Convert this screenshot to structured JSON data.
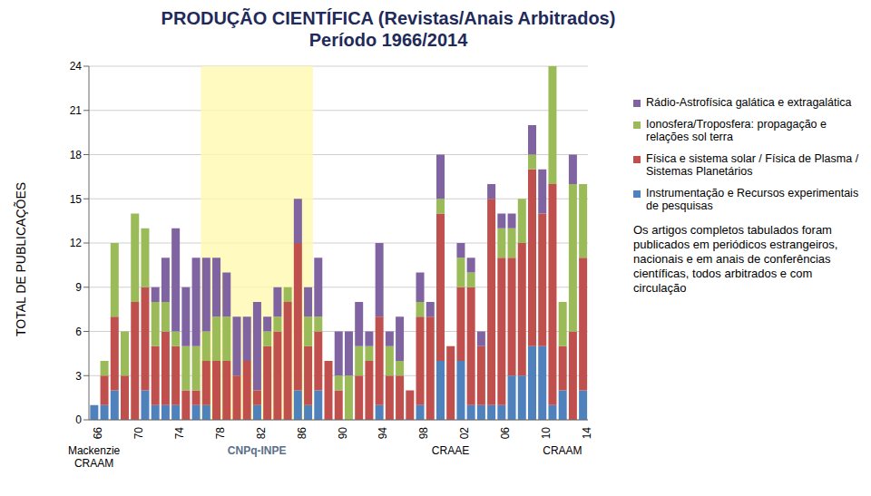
{
  "chart_data": {
    "type": "bar",
    "title": "PRODUÇÃO CIENTÍFICA (Revistas/Anais Arbitrados)",
    "subtitle": "Período 1966/2014",
    "y_label": "TOTAL DE PUBLICAÇÕES",
    "stacked": true,
    "grid": true,
    "legend": "right",
    "note": "Os artigos completos tabulados foram publicados em periódicos estrangeiros, nacionais e em anais de conferências científicas, todos arbitrados e com circulação",
    "categories": [
      "66",
      null,
      null,
      null,
      "70",
      null,
      null,
      null,
      "74",
      null,
      null,
      null,
      "78",
      null,
      null,
      null,
      "82",
      null,
      null,
      null,
      "86",
      null,
      null,
      null,
      "90",
      null,
      null,
      null,
      "94",
      null,
      null,
      null,
      "98",
      null,
      null,
      null,
      "02",
      null,
      null,
      null,
      "06",
      null,
      null,
      null,
      "10",
      null,
      null,
      null,
      "14"
    ],
    "ylim": [
      0,
      24
    ],
    "yticks": [
      0,
      3,
      6,
      9,
      12,
      15,
      18,
      21,
      24
    ],
    "series": [
      {
        "name": "Instrumentação e Recursos experimentais de pesquisas",
        "color": "#4f81bd",
        "values": [
          1,
          1,
          2,
          0,
          0,
          2,
          1,
          1,
          1,
          0,
          1,
          1,
          0,
          0,
          0,
          0,
          1,
          0,
          0,
          0,
          2,
          1,
          2,
          0,
          0,
          0,
          0,
          0,
          1,
          0,
          0,
          0,
          1,
          0,
          4,
          0,
          4,
          1,
          1,
          1,
          1,
          3,
          3,
          5,
          5,
          1,
          2,
          0,
          2
        ]
      },
      {
        "name": "Física e sistema solar / Física de Plasma / Sistemas Planetários",
        "color": "#c0504d",
        "values": [
          0,
          2,
          5,
          3,
          8,
          7,
          4,
          5,
          4,
          2,
          1,
          3,
          4,
          4,
          3,
          4,
          1,
          5,
          6,
          8,
          10,
          4,
          4,
          4,
          2,
          0,
          3,
          4,
          6,
          3,
          3,
          2,
          6,
          7,
          10,
          5,
          5,
          8,
          4,
          14,
          10,
          8,
          9,
          12,
          9,
          15,
          3,
          6,
          9
        ]
      },
      {
        "name": "Ionosfera/Troposfera: propagação e relações sol terra",
        "color": "#9bbb59",
        "values": [
          0,
          1,
          5,
          3,
          6,
          4,
          3,
          2,
          1,
          3,
          3,
          2,
          3,
          3,
          0,
          0,
          0,
          1,
          1,
          1,
          0,
          2,
          1,
          0,
          1,
          3,
          2,
          1,
          0,
          2,
          1,
          0,
          1,
          0,
          1,
          0,
          2,
          1,
          0,
          0,
          2,
          2,
          3,
          1,
          0,
          8,
          3,
          10,
          5
        ]
      },
      {
        "name": "Rádio-Astrofísica galática e extragalática",
        "color": "#8064a2",
        "values": [
          0,
          0,
          0,
          0,
          0,
          0,
          1,
          3,
          7,
          4,
          6,
          5,
          4,
          3,
          4,
          3,
          6,
          1,
          2,
          0,
          3,
          2,
          4,
          0,
          3,
          3,
          3,
          1,
          5,
          1,
          3,
          0,
          2,
          1,
          3,
          0,
          1,
          1,
          1,
          1,
          1,
          1,
          0,
          2,
          3,
          0,
          0,
          2,
          0
        ]
      }
    ],
    "annotations": [
      {
        "text": "Mackenzie CRAAM",
        "x": 0
      },
      {
        "text": "CNPq-INPE",
        "x": 16,
        "span": [
          11,
          21
        ]
      },
      {
        "text": "CRAAE",
        "x": 35
      },
      {
        "text": "CRAAM",
        "x": 46
      }
    ]
  }
}
